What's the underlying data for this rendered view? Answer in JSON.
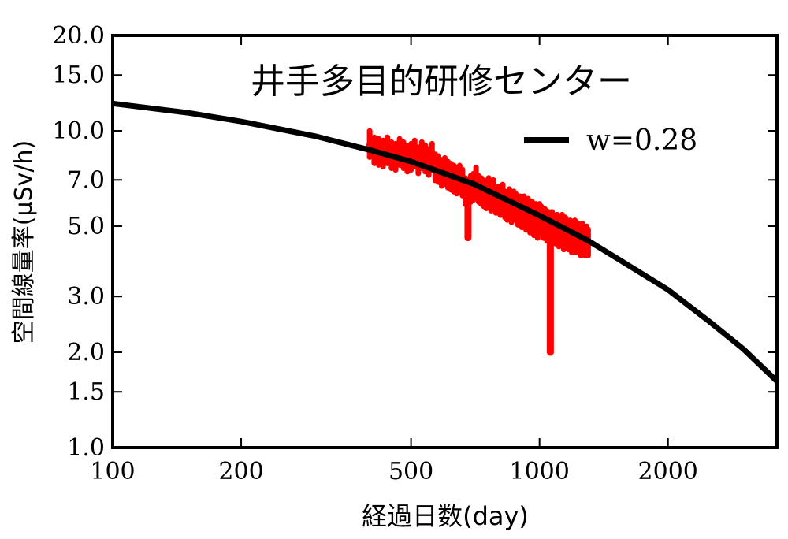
{
  "chart_data": {
    "type": "scatter",
    "title": "井手多目的研修センター",
    "xlabel": "経過日数(day)",
    "ylabel": "空間線量率(μSv/h)",
    "x_scale": "log",
    "y_scale": "log",
    "xlim": [
      100,
      3600
    ],
    "ylim": [
      1.0,
      20.0
    ],
    "x_ticks": [
      100,
      200,
      500,
      1000,
      2000
    ],
    "x_tick_labels": [
      "100",
      "200",
      "500",
      "1000",
      "2000"
    ],
    "y_ticks": [
      1.0,
      1.5,
      2.0,
      3.0,
      5.0,
      7.0,
      10.0,
      15.0,
      20.0
    ],
    "y_tick_labels": [
      "1.0",
      "1.5",
      "2.0",
      "3.0",
      "5.0",
      "7.0",
      "10.0",
      "15.0",
      "20.0"
    ],
    "legend_position": "top-right",
    "colors": {
      "fit": "#000000",
      "measured": "#ff0000"
    },
    "series": [
      {
        "name": "w=0.28",
        "kind": "line",
        "x": [
          100,
          150,
          200,
          300,
          400,
          500,
          700,
          1000,
          1300,
          1500,
          2000,
          2500,
          3000,
          3600
        ],
        "values": [
          12.2,
          11.4,
          10.7,
          9.6,
          8.7,
          8.0,
          6.8,
          5.4,
          4.5,
          4.0,
          3.15,
          2.5,
          2.05,
          1.62
        ]
      },
      {
        "kind": "scatter",
        "x": [
          400,
          410,
          420,
          430,
          440,
          450,
          460,
          470,
          480,
          490,
          500,
          510,
          520,
          530,
          540,
          550,
          560,
          570,
          580,
          590,
          600,
          610,
          620,
          630,
          640,
          650,
          660,
          670,
          680,
          690,
          700,
          710,
          720,
          730,
          740,
          750,
          760,
          770,
          780,
          790,
          800,
          810,
          820,
          830,
          840,
          850,
          860,
          870,
          880,
          890,
          900,
          910,
          920,
          930,
          940,
          950,
          960,
          970,
          980,
          990,
          1000,
          1010,
          1020,
          1030,
          1040,
          1050,
          1060,
          1070,
          1080,
          1090,
          1100,
          1110,
          1120,
          1130,
          1140,
          1150,
          1160,
          1170,
          1180,
          1190,
          1200,
          1210,
          1220,
          1230,
          1240,
          1250,
          1260,
          1270,
          1280,
          1290,
          1300
        ],
        "values": [
          9.0,
          8.6,
          8.5,
          8.4,
          8.6,
          8.3,
          8.2,
          8.5,
          8.3,
          8.1,
          8.2,
          8.4,
          8.0,
          8.3,
          8.1,
          7.9,
          8.2,
          7.6,
          7.5,
          7.3,
          7.4,
          7.2,
          7.1,
          7.0,
          6.9,
          7.0,
          6.8,
          6.4,
          6.3,
          6.5,
          6.6,
          6.9,
          6.5,
          6.4,
          6.3,
          6.2,
          6.4,
          6.1,
          6.3,
          6.0,
          6.0,
          5.9,
          6.1,
          5.8,
          5.7,
          5.9,
          5.6,
          5.8,
          5.7,
          5.5,
          5.6,
          5.4,
          5.6,
          5.3,
          5.5,
          5.2,
          5.4,
          5.1,
          5.3,
          5.0,
          5.3,
          5.2,
          5.0,
          5.1,
          4.9,
          5.0,
          4.8,
          5.0,
          4.9,
          4.8,
          4.9,
          4.7,
          4.8,
          4.9,
          4.6,
          4.8,
          4.7,
          4.6,
          4.7,
          4.5,
          4.6,
          4.7,
          4.5,
          4.6,
          4.5,
          4.4,
          4.6,
          4.5,
          4.4,
          4.5,
          4.4
        ],
        "spikes": [
          {
            "x": 680,
            "min": 4.6,
            "max": 6.2
          },
          {
            "x": 1060,
            "min": 2.0,
            "max": 5.0
          },
          {
            "x": 1240,
            "min": 4.3,
            "max": 4.8
          }
        ]
      }
    ]
  }
}
